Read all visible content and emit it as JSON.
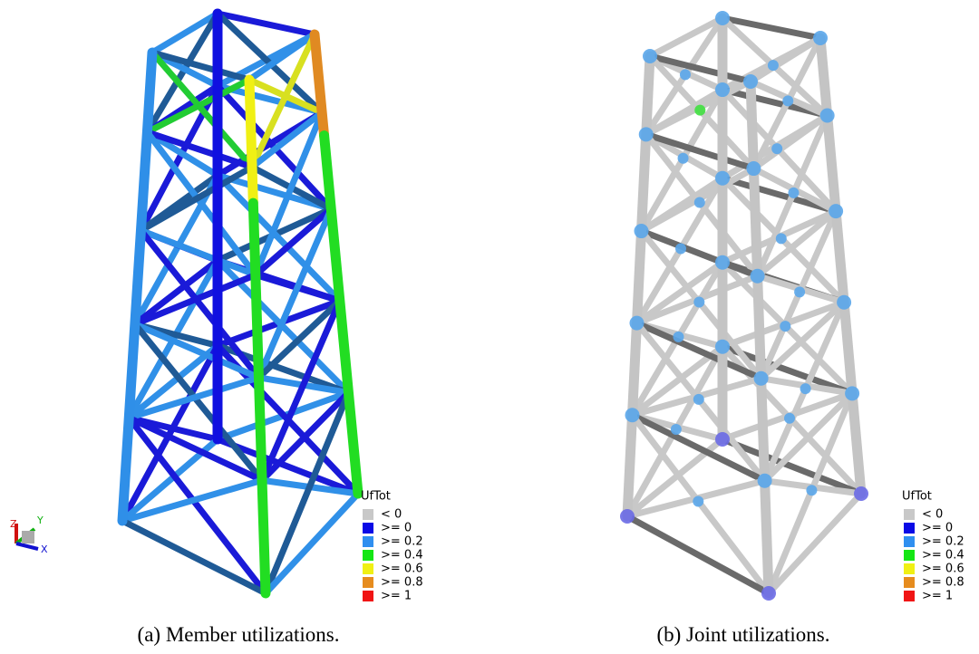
{
  "panels": [
    {
      "legend": {
        "title": "UfTot",
        "items": [
          {
            "label": "< 0",
            "color": "#c8c8c8"
          },
          {
            "label": ">= 0",
            "color": "#0a0ae6"
          },
          {
            "label": ">= 0.2",
            "color": "#2f8ff0"
          },
          {
            "label": ">= 0.4",
            "color": "#14e614"
          },
          {
            "label": ">= 0.6",
            "color": "#f0f014"
          },
          {
            "label": ">= 0.8",
            "color": "#e68c1e"
          },
          {
            "label": ">= 1",
            "color": "#f01414"
          }
        ]
      },
      "caption": "(a) Member utilizations."
    },
    {
      "legend": {
        "title": "UfTot",
        "items": [
          {
            "label": "< 0",
            "color": "#c8c8c8"
          },
          {
            "label": ">= 0",
            "color": "#0a0ae6"
          },
          {
            "label": ">= 0.2",
            "color": "#2f8ff0"
          },
          {
            "label": ">= 0.4",
            "color": "#14e614"
          },
          {
            "label": ">= 0.6",
            "color": "#f0f014"
          },
          {
            "label": ">= 0.8",
            "color": "#e68c1e"
          },
          {
            "label": ">= 1",
            "color": "#f01414"
          }
        ]
      },
      "caption": "(b) Joint utilizations."
    }
  ],
  "triad": {
    "z": "Z",
    "y": "Y",
    "x": "X"
  }
}
